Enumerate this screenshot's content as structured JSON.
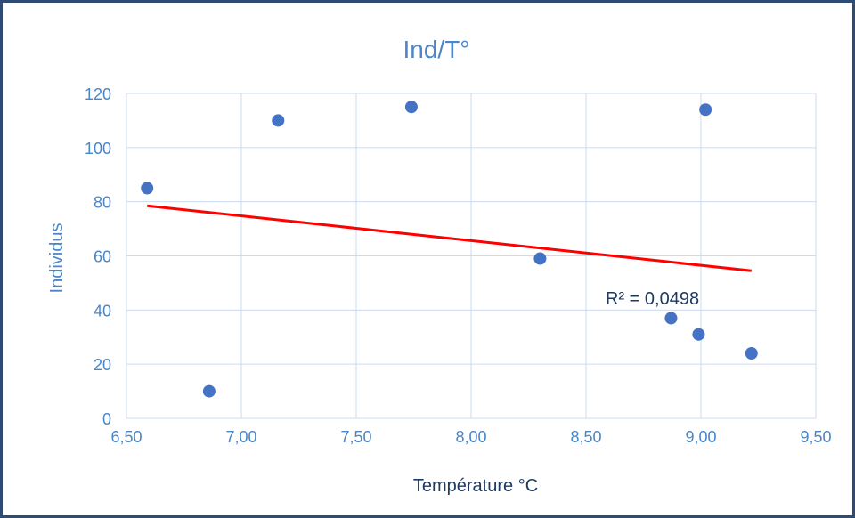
{
  "chart_data": {
    "type": "scatter",
    "title": "Ind/T°",
    "xlabel": "Température °C",
    "ylabel": "Individus",
    "xlim": [
      6.5,
      9.5
    ],
    "ylim": [
      0,
      120
    ],
    "x_ticks": [
      "6,50",
      "7,00",
      "7,50",
      "8,00",
      "8,50",
      "9,00",
      "9,50"
    ],
    "y_ticks": [
      "0",
      "20",
      "40",
      "60",
      "80",
      "100",
      "120"
    ],
    "grid": true,
    "points": [
      {
        "x": 6.59,
        "y": 85
      },
      {
        "x": 6.86,
        "y": 10
      },
      {
        "x": 7.16,
        "y": 110
      },
      {
        "x": 7.74,
        "y": 115
      },
      {
        "x": 8.3,
        "y": 59
      },
      {
        "x": 8.87,
        "y": 37
      },
      {
        "x": 8.99,
        "y": 31
      },
      {
        "x": 9.02,
        "y": 114
      },
      {
        "x": 9.22,
        "y": 24
      }
    ],
    "trendline": {
      "type": "linear",
      "x_start": 6.59,
      "y_start": 78.5,
      "x_end": 9.22,
      "y_end": 54.5,
      "color": "#ff0000"
    },
    "annotation": "R² = 0,0498",
    "colors": {
      "points": "#4472c4",
      "grid": "#c9dbf0",
      "text": "#4a86c8",
      "frame": "#2f4a73"
    }
  }
}
